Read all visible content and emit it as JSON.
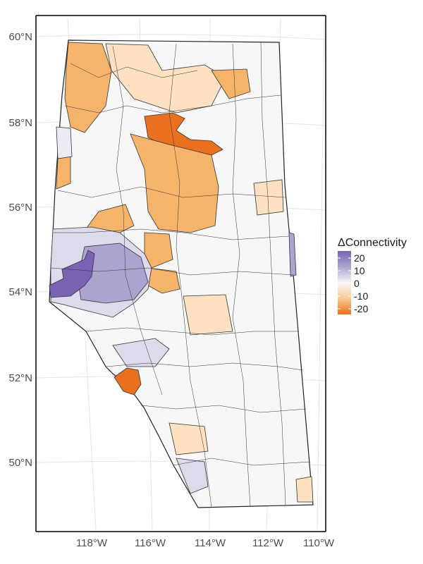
{
  "map": {
    "latitude_labels": [
      "60°N",
      "58°N",
      "56°N",
      "54°N",
      "52°N",
      "50°N"
    ],
    "longitude_labels": [
      "118°W",
      "116°W",
      "114°W",
      "112°W",
      "110°W"
    ],
    "legend": {
      "title": "ΔConnectivity",
      "labels": [
        "20",
        "10",
        "0",
        "-10",
        "-20"
      ]
    },
    "colors": {
      "strong_negative": "#e8701f",
      "moderate_negative": "#f6b46a",
      "weak_negative": "#fde1c0",
      "neutral": "#f7f7f7",
      "weak_positive": "#dcdaeb",
      "moderate_positive": "#aca4d0",
      "strong_positive": "#7a62b4",
      "outline": "#222222",
      "frame": "#000000",
      "graticule": "#e5e5e5"
    },
    "regions": [
      {
        "name": "northwest-orange-basin",
        "class": "moderate_negative"
      },
      {
        "name": "northern-orange-band",
        "class": "weak_negative"
      },
      {
        "name": "central-north-dark-orange-basin",
        "class": "strong_negative"
      },
      {
        "name": "central-orange-basins",
        "class": "moderate_negative"
      },
      {
        "name": "west-central-purple-basin",
        "class": "strong_positive"
      },
      {
        "name": "west-central-lavender-basins",
        "class": "moderate_positive"
      },
      {
        "name": "southwest-orange-basin",
        "class": "strong_negative"
      },
      {
        "name": "southern-lavender-basin",
        "class": "weak_positive"
      },
      {
        "name": "eastern-lavender-strip",
        "class": "moderate_positive"
      }
    ]
  }
}
